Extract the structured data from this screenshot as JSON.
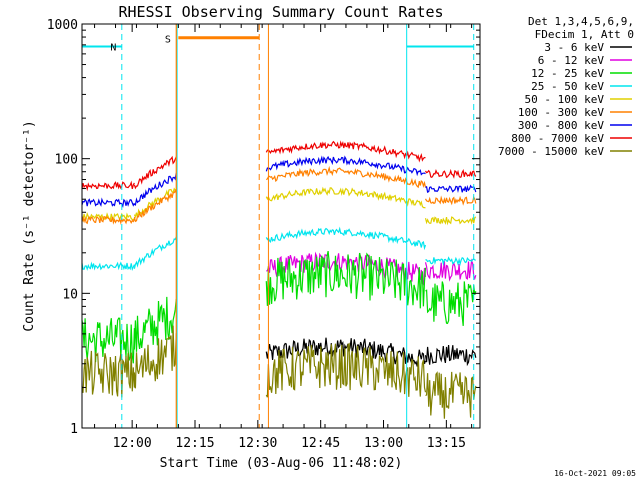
{
  "chart_data": {
    "type": "line",
    "title": "RHESSI Observing Summary Count Rates",
    "xlabel": "Start Time (03-Aug-06 11:48:02)",
    "ylabel": "Count Rate (s⁻¹ detector⁻¹)",
    "y_scale": "log",
    "ylim": [
      1,
      1000
    ],
    "xlim_minutes_from_start": [
      0,
      95
    ],
    "y_ticks": [
      "1",
      "10",
      "100",
      "1000"
    ],
    "x_ticks": [
      {
        "label": "12:00",
        "t": 11.97
      },
      {
        "label": "12:15",
        "t": 26.97
      },
      {
        "label": "12:30",
        "t": 41.97
      },
      {
        "label": "12:45",
        "t": 56.97
      },
      {
        "label": "13:00",
        "t": 71.97
      },
      {
        "label": "13:15",
        "t": 86.97
      }
    ],
    "legend_header": [
      "Det 1,3,4,5,6,9,",
      "FDecim 1, Att 0"
    ],
    "legend_placement": "right",
    "series": [
      {
        "name": "3 - 6 keV",
        "color": "#000000",
        "pre": 0,
        "post": 3.5
      },
      {
        "name": "6 - 12 keV",
        "color": "#e000e0",
        "pre": 0,
        "post": 15
      },
      {
        "name": "12 - 25 keV",
        "color": "#00dd00",
        "pre": 4.5,
        "post": 12
      },
      {
        "name": "25 - 50 keV",
        "color": "#00e5ee",
        "pre": 16,
        "post": 25
      },
      {
        "name": "50 - 100 keV",
        "color": "#e0d000",
        "pre": 37,
        "post": 50
      },
      {
        "name": "100 - 300 keV",
        "color": "#ff8000",
        "pre": 35,
        "post": 70
      },
      {
        "name": "300 - 800 keV",
        "color": "#0000ee",
        "pre": 47,
        "post": 85
      },
      {
        "name": "800 - 7000 keV",
        "color": "#ee0000",
        "pre": 63,
        "post": 110
      },
      {
        "name": "7000 - 15000 keV",
        "color": "#808000",
        "pre": 2.5,
        "post": 2.5
      }
    ],
    "flags": [
      {
        "label": "N",
        "color": "#00e5ee"
      },
      {
        "label": "S",
        "color": "#ff8000"
      }
    ],
    "grid": false
  },
  "footer": {
    "timestamp": "16-Oct-2021 09:05"
  }
}
